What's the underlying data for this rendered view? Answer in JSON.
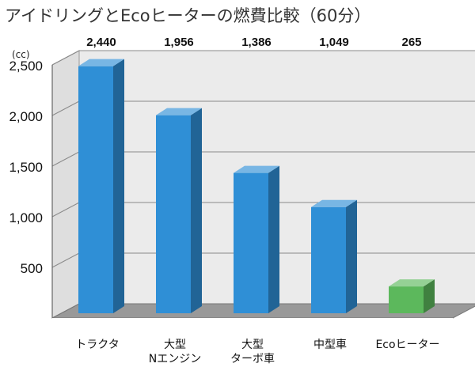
{
  "title": "アイドリングとEcoヒーターの燃費比較（60分）",
  "colors": {
    "bar_blue": "#2f8fd6",
    "bar_green": "#5cb85c",
    "wall": "#ebebeb",
    "floor": "#999999"
  },
  "chart_data": {
    "type": "bar",
    "title": "アイドリングとEcoヒーターの燃費比較（60分）",
    "ylabel": "(cc)",
    "xlabel": "",
    "ylim": [
      0,
      2500
    ],
    "yticks": [
      500,
      1000,
      1500,
      2000,
      2500
    ],
    "ytick_labels": [
      "500",
      "1,000",
      "1,500",
      "2,000",
      "2,500"
    ],
    "grid": true,
    "categories": [
      [
        "トラクタ"
      ],
      [
        "大型",
        "Nエンジン"
      ],
      [
        "大型",
        "ターボ車"
      ],
      [
        "中型車"
      ],
      [
        "Ecoヒーター"
      ]
    ],
    "values": [
      2440,
      1956,
      1386,
      1049,
      265
    ],
    "value_labels": [
      "2,440",
      "1,956",
      "1,386",
      "1,049",
      "265"
    ],
    "bar_colors": [
      "blue",
      "blue",
      "blue",
      "blue",
      "green"
    ]
  }
}
